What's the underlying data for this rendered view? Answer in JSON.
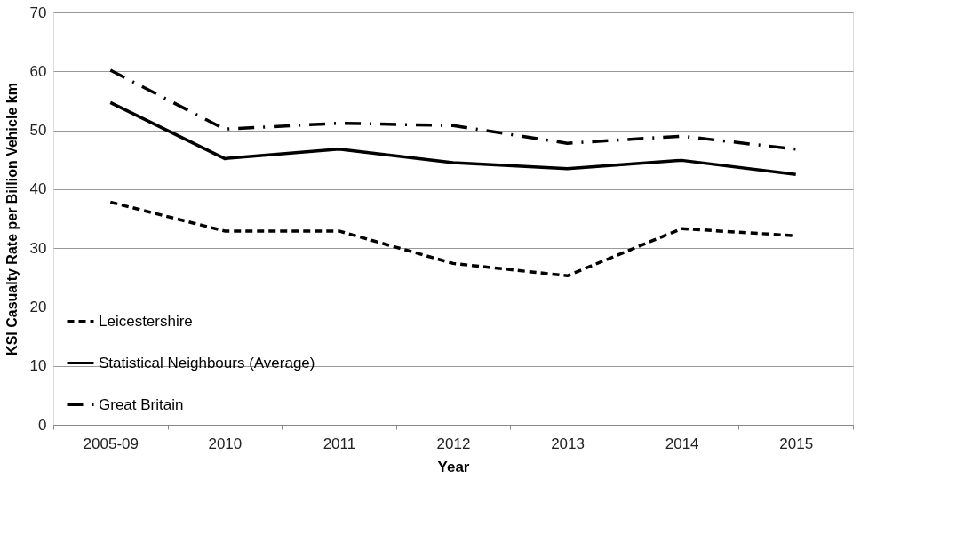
{
  "chart_data": {
    "type": "line",
    "xlabel": "Year",
    "ylabel": "KSI Casualty Rate per Billion Vehicle km",
    "categories": [
      "2005-09",
      "2010",
      "2011",
      "2012",
      "2013",
      "2014",
      "2015"
    ],
    "series": [
      {
        "name": "Leicestershire",
        "color": "#000000",
        "line_style": "dashed",
        "values": [
          37.8,
          32.9,
          32.9,
          27.4,
          25.3,
          33.3,
          32.1
        ]
      },
      {
        "name": "Statistical Neighbours (Average)",
        "color": "#000000",
        "line_style": "solid",
        "values": [
          54.7,
          45.2,
          46.8,
          44.5,
          43.5,
          44.9,
          42.5
        ]
      },
      {
        "name": "Great Britain",
        "color": "#000000",
        "line_style": "dashdot",
        "values": [
          60.2,
          50.2,
          51.2,
          50.8,
          47.8,
          49.0,
          46.8
        ]
      }
    ],
    "ylim": [
      0,
      70
    ],
    "yticks": [
      0,
      10,
      20,
      30,
      40,
      50,
      60,
      70
    ],
    "grid": "y",
    "legend": "bottom left",
    "marker": "none"
  }
}
